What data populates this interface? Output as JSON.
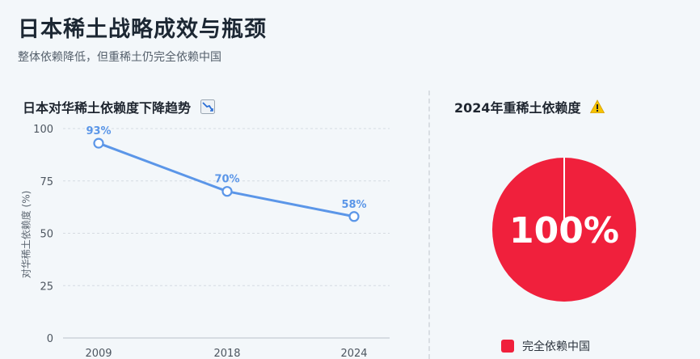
{
  "title": "日本稀土战略成效与瓶颈",
  "subtitle": "整体依赖降低，但重稀土仍完全依赖中国",
  "left_chart_title": "日本对华稀土依赖度下降趋势",
  "left_chart_icon": "chart-decreasing-icon",
  "right_chart_title": "2024年重稀土依赖度",
  "right_chart_icon": "warning-icon",
  "colors": {
    "line": "#5b96e8",
    "pie": "#f0203c",
    "grid": "#d5dbe1"
  },
  "chart_data": [
    {
      "type": "line",
      "title": "日本对华稀土依赖度下降趋势",
      "x": [
        "2009",
        "2018",
        "2024"
      ],
      "series": [
        {
          "values": [
            93,
            70,
            58
          ],
          "labels": [
            "93%",
            "70%",
            "58%"
          ]
        }
      ],
      "ylabel": "对华稀土依赖度 (%)",
      "ylim": [
        0,
        100
      ],
      "yticks": [
        "0",
        "25",
        "50",
        "75",
        "100"
      ],
      "grid": true
    },
    {
      "type": "pie",
      "title": "2024年重稀土依赖度",
      "slices": [
        {
          "label": "完全依赖中国",
          "value": 100
        }
      ],
      "center_label": "100%",
      "legend": "bottom"
    }
  ]
}
